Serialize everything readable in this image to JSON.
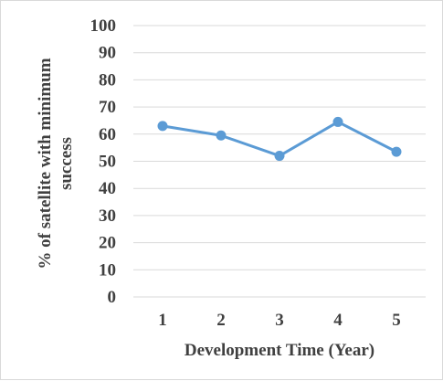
{
  "chart_data": {
    "type": "line",
    "x": [
      1,
      2,
      3,
      4,
      5
    ],
    "series": [
      {
        "values": [
          63,
          59.5,
          52,
          64.5,
          53.5
        ],
        "color": "#5b9bd5"
      }
    ],
    "xlabel": "Development Time (Year)",
    "ylabel_lines": [
      "% of satellite with minimum",
      "success"
    ],
    "ylim": [
      0,
      100
    ],
    "yticks": [
      0,
      10,
      20,
      30,
      40,
      50,
      60,
      70,
      80,
      90,
      100
    ],
    "xticks": [
      "1",
      "2",
      "3",
      "4",
      "5"
    ],
    "grid": true,
    "legend": "none"
  }
}
